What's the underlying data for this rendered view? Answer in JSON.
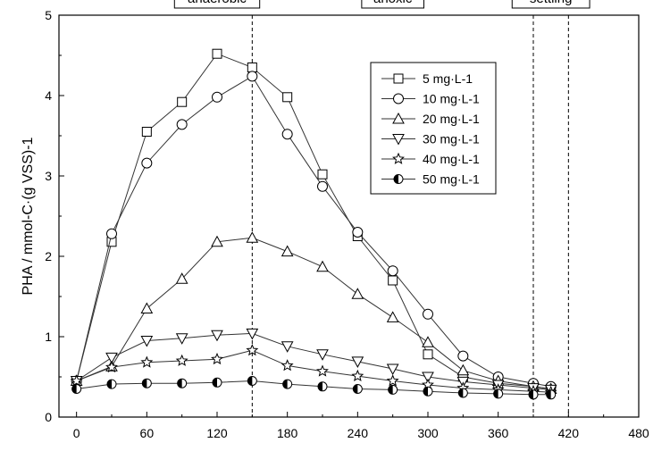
{
  "chart_data": {
    "type": "line",
    "ylabel": "PHA / mmol-C·(g VSS)-1",
    "xlabel": "",
    "xlim": [
      -15,
      480
    ],
    "ylim": [
      0,
      5
    ],
    "x_ticks": [
      "0",
      "60",
      "120",
      "180",
      "240",
      "300",
      "360",
      "420",
      "480"
    ],
    "y_ticks": [
      "0",
      "1",
      "2",
      "3",
      "4",
      "5"
    ],
    "phase_labels": [
      {
        "text": "anaerobic",
        "center_x": 120
      },
      {
        "text": "anoxic",
        "center_x": 270
      },
      {
        "text": "settling",
        "center_x": 405
      }
    ],
    "phase_boundaries": [
      150,
      390,
      420
    ],
    "legend_position": "top-right",
    "series": [
      {
        "name": "5 mg·L-1",
        "marker": "square",
        "x": [
          0,
          30,
          60,
          90,
          120,
          150,
          180,
          210,
          240,
          270,
          300,
          330,
          360,
          390,
          405
        ],
        "y": [
          0.45,
          2.18,
          3.55,
          3.92,
          4.52,
          4.35,
          3.98,
          3.02,
          2.25,
          1.7,
          0.78,
          0.5,
          0.42,
          0.38,
          0.35
        ]
      },
      {
        "name": "10 mg·L-1",
        "marker": "circle",
        "x": [
          0,
          30,
          60,
          90,
          120,
          150,
          180,
          210,
          240,
          270,
          300,
          330,
          360,
          390,
          405
        ],
        "y": [
          0.45,
          2.28,
          3.16,
          3.64,
          3.98,
          4.24,
          3.52,
          2.87,
          2.3,
          1.82,
          1.28,
          0.76,
          0.5,
          0.42,
          0.38
        ]
      },
      {
        "name": "20 mg·L-1",
        "marker": "triangle-up",
        "x": [
          0,
          30,
          60,
          90,
          120,
          150,
          180,
          210,
          240,
          270,
          300,
          330,
          360,
          390,
          405
        ],
        "y": [
          0.45,
          0.63,
          1.35,
          1.72,
          2.18,
          2.23,
          2.06,
          1.87,
          1.53,
          1.24,
          0.93,
          0.58,
          0.45,
          0.38,
          0.35
        ]
      },
      {
        "name": "30 mg·L-1",
        "marker": "triangle-down",
        "x": [
          0,
          30,
          60,
          90,
          120,
          150,
          180,
          210,
          240,
          270,
          300,
          330,
          360,
          390,
          405
        ],
        "y": [
          0.45,
          0.74,
          0.95,
          0.98,
          1.02,
          1.04,
          0.88,
          0.78,
          0.69,
          0.6,
          0.5,
          0.44,
          0.4,
          0.36,
          0.34
        ]
      },
      {
        "name": "40 mg·L-1",
        "marker": "star",
        "x": [
          0,
          30,
          60,
          90,
          120,
          150,
          180,
          210,
          240,
          270,
          300,
          330,
          360,
          390,
          405
        ],
        "y": [
          0.45,
          0.62,
          0.68,
          0.7,
          0.72,
          0.83,
          0.64,
          0.57,
          0.51,
          0.45,
          0.4,
          0.36,
          0.34,
          0.32,
          0.31
        ]
      },
      {
        "name": "50 mg·L-1",
        "marker": "half-circle",
        "x": [
          0,
          30,
          60,
          90,
          120,
          150,
          180,
          210,
          240,
          270,
          300,
          330,
          360,
          390,
          405
        ],
        "y": [
          0.35,
          0.41,
          0.42,
          0.42,
          0.43,
          0.45,
          0.41,
          0.38,
          0.35,
          0.34,
          0.32,
          0.3,
          0.29,
          0.28,
          0.28
        ]
      }
    ]
  }
}
